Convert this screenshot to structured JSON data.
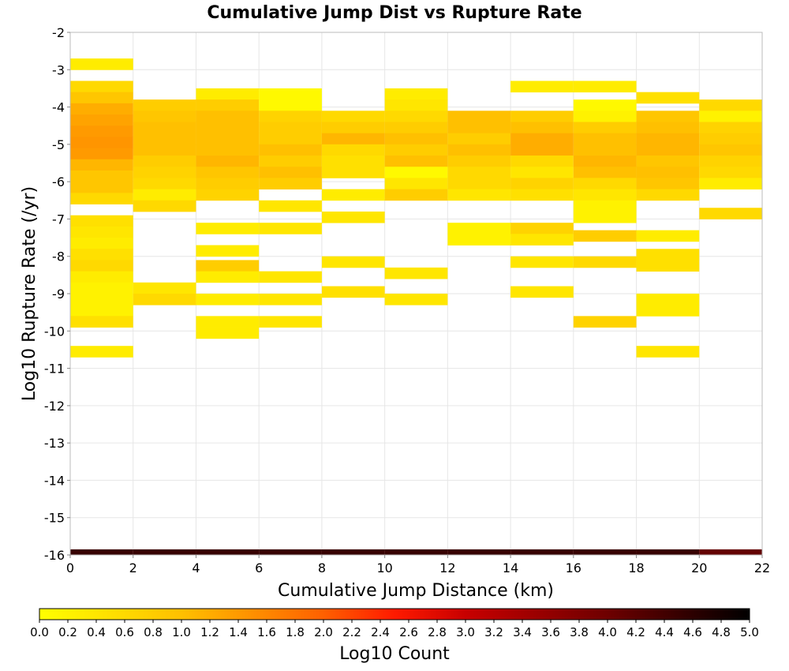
{
  "chart_data": {
    "type": "heatmap",
    "title": "Cumulative Jump Dist vs Rupture Rate",
    "xlabel": "Cumulative Jump Distance (km)",
    "ylabel": "Log10 Rupture Rate (/yr)",
    "xlim": [
      0,
      22
    ],
    "ylim": [
      -16,
      -2
    ],
    "x_ticks": [
      0,
      2,
      4,
      6,
      8,
      10,
      12,
      14,
      16,
      18,
      20,
      22
    ],
    "y_ticks": [
      -2,
      -3,
      -4,
      -5,
      -6,
      -7,
      -8,
      -9,
      -10,
      -11,
      -12,
      -13,
      -14,
      -15,
      -16
    ],
    "bin_width_x": 2,
    "bin_height_y": 0.3,
    "grid": true,
    "colorbar": {
      "label": "Log10 Count",
      "range": [
        0,
        5
      ],
      "ticks": [
        "0.0",
        "0.2",
        "0.4",
        "0.6",
        "0.8",
        "1.0",
        "1.2",
        "1.4",
        "1.6",
        "1.8",
        "2.0",
        "2.2",
        "2.4",
        "2.6",
        "2.8",
        "3.0",
        "3.2",
        "3.4",
        "3.6",
        "3.8",
        "4.0",
        "4.2",
        "4.4",
        "4.6",
        "4.8",
        "5.0"
      ],
      "placement": "bottom"
    },
    "bottom_row": {
      "y_center": -16,
      "values": [
        4.5,
        4.5,
        4.5,
        4.5,
        4.5,
        4.5,
        4.5,
        4.5,
        4.5,
        4.5,
        4.1
      ]
    },
    "columns": [
      {
        "x": 1,
        "cells": [
          [
            -2.85,
            0.3
          ],
          [
            -3.45,
            0.6
          ],
          [
            -3.75,
            0.9
          ],
          [
            -4.05,
            1.2
          ],
          [
            -4.35,
            1.3
          ],
          [
            -4.65,
            1.4
          ],
          [
            -4.95,
            1.45
          ],
          [
            -5.25,
            1.4
          ],
          [
            -5.55,
            1.1
          ],
          [
            -5.85,
            0.9
          ],
          [
            -6.15,
            0.9
          ],
          [
            -6.45,
            0.6
          ],
          [
            -7.05,
            0.5
          ],
          [
            -7.35,
            0.4
          ],
          [
            -7.65,
            0.3
          ],
          [
            -7.95,
            0.5
          ],
          [
            -8.25,
            0.6
          ],
          [
            -8.55,
            0.3
          ],
          [
            -8.85,
            0.2
          ],
          [
            -9.15,
            0.2
          ],
          [
            -9.45,
            0.2
          ],
          [
            -9.75,
            0.5
          ],
          [
            -10.55,
            0.3
          ]
        ]
      },
      {
        "x": 3,
        "cells": [
          [
            -3.95,
            0.8
          ],
          [
            -4.25,
            0.9
          ],
          [
            -4.55,
            1.0
          ],
          [
            -4.85,
            1.0
          ],
          [
            -5.15,
            1.0
          ],
          [
            -5.45,
            0.8
          ],
          [
            -5.75,
            0.7
          ],
          [
            -6.05,
            0.6
          ],
          [
            -6.35,
            0.3
          ],
          [
            -6.65,
            0.6
          ],
          [
            -8.85,
            0.4
          ],
          [
            -9.15,
            0.6
          ]
        ]
      },
      {
        "x": 5,
        "cells": [
          [
            -3.65,
            0.3
          ],
          [
            -3.95,
            0.8
          ],
          [
            -4.25,
            1.0
          ],
          [
            -4.55,
            1.0
          ],
          [
            -4.85,
            1.0
          ],
          [
            -5.15,
            1.0
          ],
          [
            -5.45,
            1.1
          ],
          [
            -5.75,
            0.9
          ],
          [
            -6.05,
            0.8
          ],
          [
            -6.35,
            0.7
          ],
          [
            -7.25,
            0.3
          ],
          [
            -7.85,
            0.3
          ],
          [
            -8.25,
            0.8
          ],
          [
            -8.55,
            0.3
          ],
          [
            -9.15,
            0.3
          ],
          [
            -9.75,
            0.3
          ],
          [
            -10.05,
            0.3
          ]
        ]
      },
      {
        "x": 7,
        "cells": [
          [
            -3.65,
            0.1
          ],
          [
            -3.95,
            0.1
          ],
          [
            -4.25,
            0.7
          ],
          [
            -4.55,
            0.8
          ],
          [
            -4.85,
            0.8
          ],
          [
            -5.15,
            1.0
          ],
          [
            -5.45,
            0.8
          ],
          [
            -5.75,
            1.0
          ],
          [
            -6.05,
            0.8
          ],
          [
            -6.65,
            0.4
          ],
          [
            -7.25,
            0.4
          ],
          [
            -8.55,
            0.4
          ],
          [
            -9.15,
            0.4
          ],
          [
            -9.75,
            0.4
          ]
        ]
      },
      {
        "x": 9,
        "cells": [
          [
            -4.25,
            0.6
          ],
          [
            -4.55,
            0.8
          ],
          [
            -4.85,
            1.1
          ],
          [
            -5.15,
            0.6
          ],
          [
            -5.45,
            0.5
          ],
          [
            -5.75,
            0.5
          ],
          [
            -6.35,
            0.3
          ],
          [
            -6.95,
            0.4
          ],
          [
            -8.15,
            0.4
          ],
          [
            -8.95,
            0.5
          ]
        ]
      },
      {
        "x": 11,
        "cells": [
          [
            -3.65,
            0.3
          ],
          [
            -3.95,
            0.4
          ],
          [
            -4.25,
            0.6
          ],
          [
            -4.55,
            0.8
          ],
          [
            -4.85,
            1.0
          ],
          [
            -5.15,
            0.8
          ],
          [
            -5.45,
            1.0
          ],
          [
            -5.75,
            0.1
          ],
          [
            -6.05,
            0.4
          ],
          [
            -6.35,
            0.8
          ],
          [
            -8.45,
            0.4
          ],
          [
            -9.15,
            0.4
          ]
        ]
      },
      {
        "x": 13,
        "cells": [
          [
            -4.25,
            1.0
          ],
          [
            -4.55,
            1.0
          ],
          [
            -4.85,
            0.8
          ],
          [
            -5.15,
            1.0
          ],
          [
            -5.45,
            0.8
          ],
          [
            -5.75,
            0.6
          ],
          [
            -6.05,
            0.6
          ],
          [
            -6.35,
            0.4
          ],
          [
            -7.25,
            0.2
          ],
          [
            -7.55,
            0.2
          ]
        ]
      },
      {
        "x": 15,
        "cells": [
          [
            -3.45,
            0.3
          ],
          [
            -4.25,
            0.8
          ],
          [
            -4.55,
            1.0
          ],
          [
            -4.85,
            1.2
          ],
          [
            -5.15,
            1.2
          ],
          [
            -5.45,
            0.6
          ],
          [
            -5.75,
            0.4
          ],
          [
            -6.05,
            0.7
          ],
          [
            -6.35,
            0.5
          ],
          [
            -7.25,
            0.7
          ],
          [
            -7.55,
            0.4
          ],
          [
            -8.15,
            0.4
          ],
          [
            -8.95,
            0.4
          ]
        ]
      },
      {
        "x": 17,
        "cells": [
          [
            -3.45,
            0.3
          ],
          [
            -3.95,
            0.1
          ],
          [
            -4.25,
            0.2
          ],
          [
            -4.55,
            0.8
          ],
          [
            -4.85,
            1.0
          ],
          [
            -5.15,
            1.0
          ],
          [
            -5.45,
            1.1
          ],
          [
            -5.75,
            1.0
          ],
          [
            -6.05,
            0.6
          ],
          [
            -6.35,
            0.4
          ],
          [
            -6.65,
            0.2
          ],
          [
            -6.95,
            0.2
          ],
          [
            -7.45,
            0.8
          ],
          [
            -8.15,
            0.6
          ],
          [
            -9.75,
            0.7
          ]
        ]
      },
      {
        "x": 19,
        "cells": [
          [
            -3.75,
            0.5
          ],
          [
            -4.25,
            0.9
          ],
          [
            -4.55,
            1.0
          ],
          [
            -4.85,
            1.1
          ],
          [
            -5.15,
            1.1
          ],
          [
            -5.45,
            0.9
          ],
          [
            -5.75,
            1.0
          ],
          [
            -6.05,
            0.9
          ],
          [
            -6.35,
            0.6
          ],
          [
            -7.45,
            0.3
          ],
          [
            -7.95,
            0.5
          ],
          [
            -8.25,
            0.5
          ],
          [
            -9.15,
            0.3
          ],
          [
            -9.45,
            0.3
          ],
          [
            -10.55,
            0.4
          ]
        ]
      },
      {
        "x": 21,
        "cells": [
          [
            -3.95,
            0.6
          ],
          [
            -4.25,
            0.2
          ],
          [
            -4.55,
            0.7
          ],
          [
            -4.85,
            0.8
          ],
          [
            -5.15,
            0.9
          ],
          [
            -5.45,
            0.7
          ],
          [
            -5.75,
            0.6
          ],
          [
            -6.05,
            0.3
          ],
          [
            -6.85,
            0.6
          ]
        ]
      }
    ]
  }
}
